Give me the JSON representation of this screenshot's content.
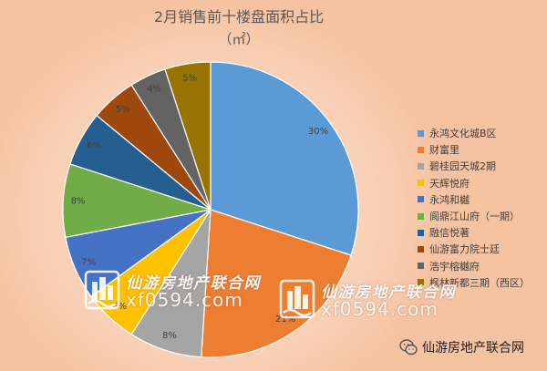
{
  "chart_data": {
    "type": "pie",
    "title": "2月销售前十楼盘面积占比",
    "subtitle": "（㎡）",
    "categories": [
      "永鸿文化城B区",
      "财富里",
      "碧桂园天城2期",
      "天辉悦府",
      "永鸿和樾",
      "阆鼎江山府（一期）",
      "融信悦著",
      "仙游富力院士廷",
      "浩宇榕樾府",
      "枫林新都三期（西区）"
    ],
    "values": [
      30,
      21,
      8,
      6,
      7,
      8,
      6,
      5,
      4,
      5
    ],
    "colors": [
      "#5B9BD5",
      "#ED7D31",
      "#A5A5A5",
      "#FFC000",
      "#4472C4",
      "#70AD47",
      "#255E91",
      "#9E480E",
      "#636363",
      "#997300"
    ],
    "legend_position": "right"
  },
  "watermarks": {
    "brand": "仙游房地产联合网",
    "site": "xf0594.com"
  }
}
